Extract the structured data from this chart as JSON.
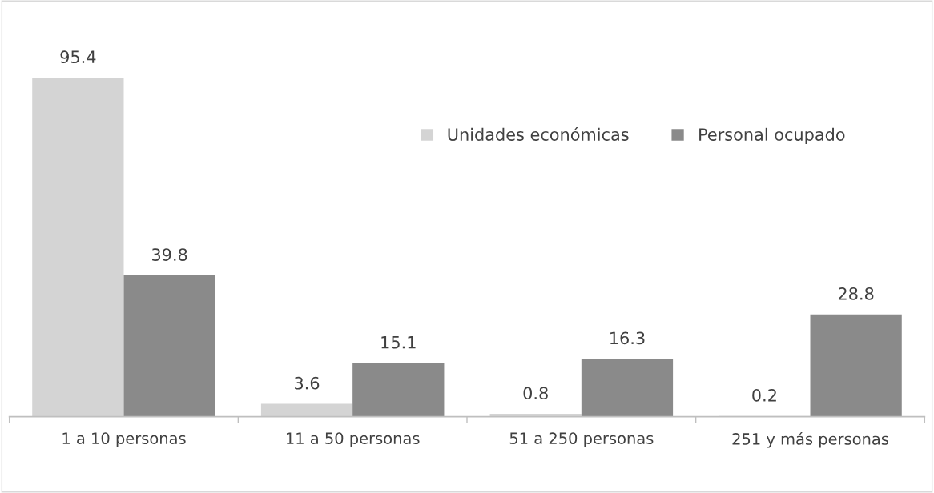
{
  "chart_data": {
    "type": "bar",
    "categories": [
      "1 a 10 personas",
      "11 a 50 personas",
      "51 a 250 personas",
      "251 y más personas"
    ],
    "series": [
      {
        "name": "Unidades económicas",
        "color": "#d4d4d4",
        "values": [
          95.4,
          3.6,
          0.8,
          0.2
        ]
      },
      {
        "name": "Personal ocupado",
        "color": "#8a8a8a",
        "values": [
          39.8,
          15.1,
          16.3,
          28.8
        ]
      }
    ],
    "data_labels": true,
    "legend": "top right",
    "grid": false
  }
}
